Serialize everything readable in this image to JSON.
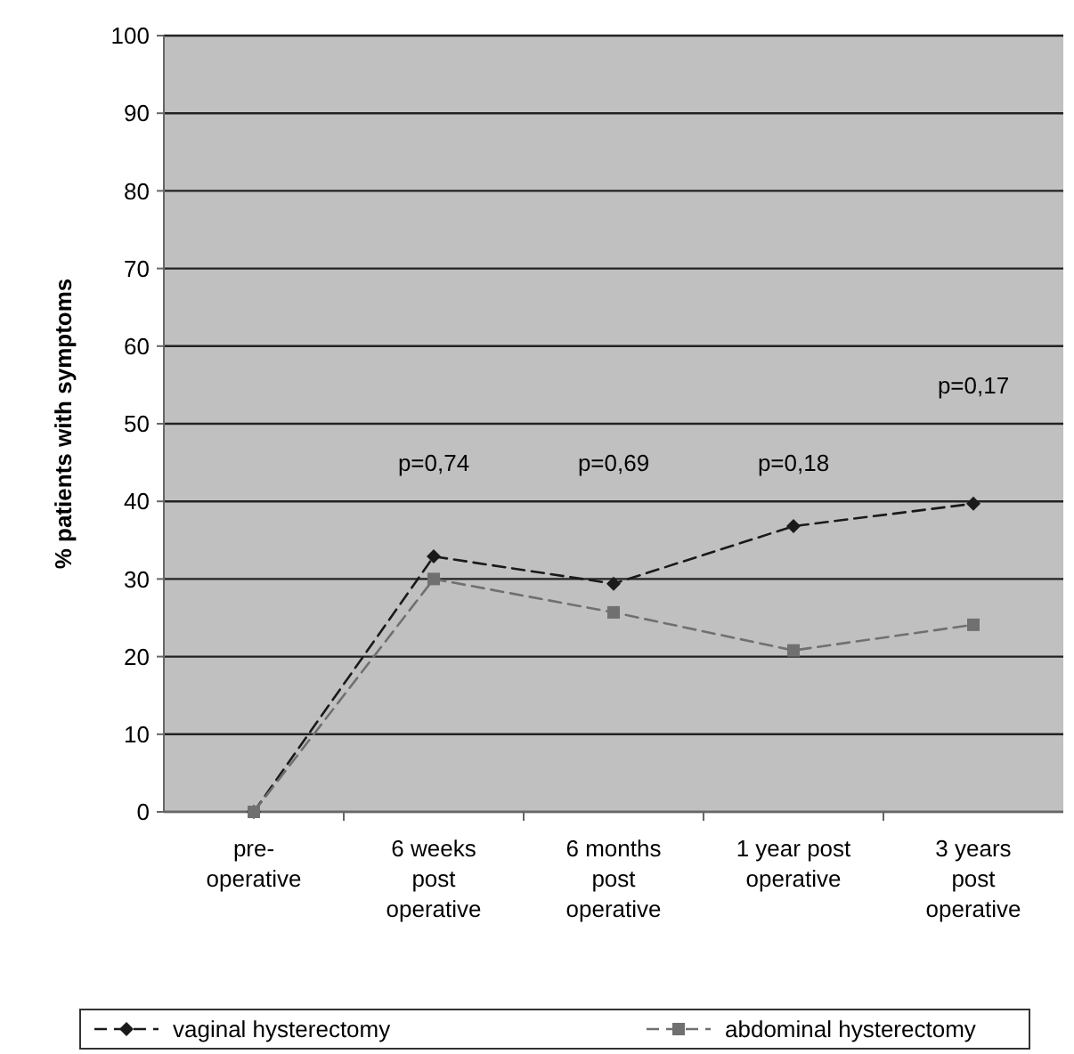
{
  "chart_data": {
    "type": "line",
    "ylabel": "% patients with symptoms",
    "categories": [
      "pre-\noperative",
      "6 weeks\npost\noperative",
      "6 months\npost\noperative",
      "1 year post\noperative",
      "3 years\npost\noperative"
    ],
    "series": [
      {
        "name": "vaginal hysterectomy",
        "color": "#1a1a1a",
        "values": [
          0,
          32.9,
          29.4,
          36.8,
          39.7
        ],
        "marker": "diamond",
        "line_style": "dashed"
      },
      {
        "name": "abdominal hysterectomy",
        "color": "#707070",
        "values": [
          0,
          30.0,
          25.7,
          20.8,
          24.1
        ],
        "marker": "square",
        "line_style": "dashed"
      }
    ],
    "ylim": [
      0,
      100
    ],
    "yticks": [
      0,
      10,
      20,
      30,
      40,
      50,
      60,
      70,
      80,
      90,
      100
    ],
    "grid": "y",
    "legend": "bottom",
    "annotations": [
      "p=0,74",
      "p=0,69",
      "p=0,18",
      "p=0,17"
    ]
  }
}
